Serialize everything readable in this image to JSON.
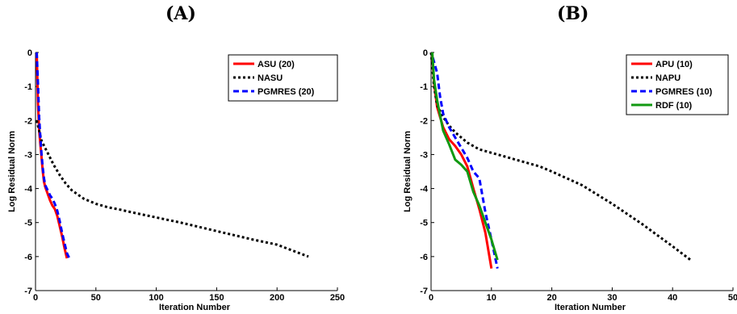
{
  "panels": [
    {
      "title": "(A)"
    },
    {
      "title": "(B)"
    }
  ],
  "chart_data": [
    {
      "type": "line",
      "title": "(A)",
      "xlabel": "Iteration Number",
      "ylabel": "Log Residual Norm",
      "xlim": [
        0,
        250
      ],
      "ylim": [
        -7,
        0
      ],
      "xticks": [
        0,
        50,
        100,
        150,
        200,
        250
      ],
      "yticks": [
        0,
        -1,
        -2,
        -3,
        -4,
        -5,
        -6,
        -7
      ],
      "legend_position": "top-right",
      "series": [
        {
          "name": "ASU (20)",
          "color": "#ff0000",
          "dash": "solid",
          "x": [
            1,
            2,
            3,
            4,
            5,
            6,
            7,
            8,
            10,
            12,
            14,
            16,
            18,
            20,
            22,
            24,
            26
          ],
          "y": [
            0,
            -1.5,
            -2.3,
            -2.7,
            -3.1,
            -3.5,
            -3.8,
            -3.95,
            -4.15,
            -4.35,
            -4.5,
            -4.6,
            -4.8,
            -5.1,
            -5.4,
            -5.75,
            -6.05
          ]
        },
        {
          "name": "NASU",
          "color": "#000000",
          "dash": "dotted",
          "x": [
            1,
            3,
            5,
            10,
            15,
            20,
            25,
            30,
            40,
            50,
            60,
            70,
            80,
            100,
            120,
            150,
            180,
            200,
            226
          ],
          "y": [
            -2.0,
            -2.3,
            -2.6,
            -2.95,
            -3.3,
            -3.6,
            -3.85,
            -4.05,
            -4.3,
            -4.45,
            -4.55,
            -4.62,
            -4.7,
            -4.85,
            -5.0,
            -5.25,
            -5.5,
            -5.65,
            -6.0
          ]
        },
        {
          "name": "PGMRES (20)",
          "color": "#0000ff",
          "dash": "dashed",
          "x": [
            1,
            2,
            3,
            4,
            5,
            6,
            7,
            8,
            10,
            12,
            14,
            16,
            18,
            20,
            22,
            24,
            26,
            28
          ],
          "y": [
            0,
            -0.9,
            -1.9,
            -2.5,
            -3.0,
            -3.4,
            -3.7,
            -3.9,
            -4.05,
            -4.2,
            -4.3,
            -4.45,
            -4.65,
            -4.95,
            -5.3,
            -5.6,
            -5.9,
            -6.05
          ]
        }
      ]
    },
    {
      "type": "line",
      "title": "(B)",
      "xlabel": "Iteration Number",
      "ylabel": "Log Residual Norm",
      "xlim": [
        0,
        50
      ],
      "ylim": [
        -7,
        0
      ],
      "xticks": [
        0,
        10,
        20,
        30,
        40,
        50
      ],
      "yticks": [
        0,
        -1,
        -2,
        -3,
        -4,
        -5,
        -6,
        -7
      ],
      "legend_position": "top-right",
      "series": [
        {
          "name": "APU (10)",
          "color": "#ff0000",
          "dash": "solid",
          "x": [
            0.2,
            0.5,
            1,
            1.5,
            2,
            3,
            4,
            5,
            6,
            7,
            8,
            9,
            10
          ],
          "y": [
            -0.1,
            -0.9,
            -1.6,
            -1.9,
            -2.2,
            -2.55,
            -2.75,
            -3.0,
            -3.35,
            -4.0,
            -4.6,
            -5.3,
            -6.35
          ]
        },
        {
          "name": "NAPU",
          "color": "#000000",
          "dash": "dotted",
          "x": [
            0,
            0.5,
            1,
            2,
            3,
            4,
            5,
            6,
            7,
            8,
            10,
            12,
            15,
            18,
            20,
            25,
            30,
            35,
            40,
            43
          ],
          "y": [
            0,
            -1.0,
            -1.55,
            -1.9,
            -2.15,
            -2.35,
            -2.5,
            -2.65,
            -2.75,
            -2.85,
            -2.95,
            -3.05,
            -3.2,
            -3.35,
            -3.5,
            -3.9,
            -4.45,
            -5.05,
            -5.7,
            -6.1
          ]
        },
        {
          "name": "PGMRES (10)",
          "color": "#0000ff",
          "dash": "dashed",
          "x": [
            0.3,
            1,
            1.5,
            2,
            3,
            4,
            5,
            6,
            7,
            8,
            9,
            10,
            11
          ],
          "y": [
            -0.15,
            -0.6,
            -1.3,
            -1.8,
            -2.2,
            -2.5,
            -2.8,
            -3.1,
            -3.5,
            -3.7,
            -4.7,
            -5.5,
            -6.35
          ]
        },
        {
          "name": "RDF (10)",
          "color": "#119911",
          "dash": "solid",
          "x": [
            0.2,
            0.5,
            1,
            1.5,
            2,
            3,
            4,
            5,
            6,
            7,
            8,
            9,
            10,
            11
          ],
          "y": [
            0,
            -0.8,
            -1.4,
            -1.85,
            -2.3,
            -2.7,
            -3.15,
            -3.3,
            -3.5,
            -4.1,
            -4.5,
            -5.0,
            -5.5,
            -6.1
          ]
        }
      ]
    }
  ]
}
